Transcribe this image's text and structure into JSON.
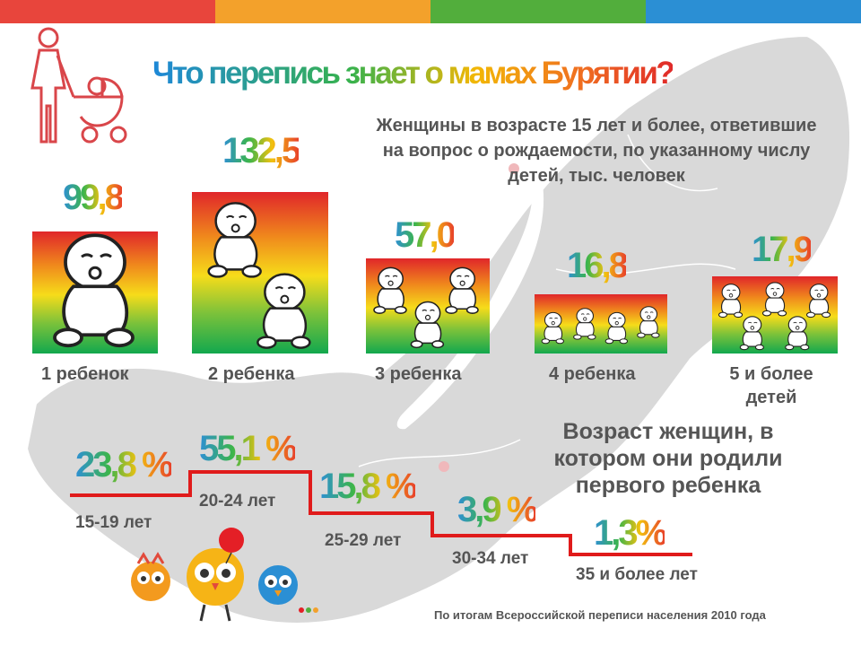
{
  "colors": {
    "bar_red": "#e8453c",
    "bar_orange": "#f3a12b",
    "bar_green": "#52ae3c",
    "bar_blue": "#2b8fd4",
    "step_line": "#e01b1b",
    "text_gray": "#555555"
  },
  "title": "Что перепись знает о мамах Бурятии?",
  "subtitle": "Женщины в возрасте 15 лет и более, ответившие на вопрос о рождаемости, по указанному числу детей, тыс. человек",
  "children": [
    {
      "value": "99,8",
      "label": "1 ребенок",
      "babies": 1
    },
    {
      "value": "132,5",
      "label": "2 ребенка",
      "babies": 2
    },
    {
      "value": "57,0",
      "label": "3 ребенка",
      "babies": 3
    },
    {
      "value": "16,8",
      "label": "4 ребенка",
      "babies": 4
    },
    {
      "value": "17,9",
      "label": "5 и более детей",
      "babies": 5
    }
  ],
  "age_heading": "Возраст женщин, в котором они родили первого ребенка",
  "age_groups": [
    {
      "percent": "23,8 %",
      "label": "15-19 лет"
    },
    {
      "percent": "55,1 %",
      "label": "20-24 лет"
    },
    {
      "percent": "15,8 %",
      "label": "25-29 лет"
    },
    {
      "percent": "3,9 %",
      "label": "30-34 лет"
    },
    {
      "percent": "1,3%",
      "label": "35 и более лет"
    }
  ],
  "icons": [
    "mother-with-stroller-icon",
    "baby-icon",
    "census-mascots"
  ],
  "footer": "По итогам Всероссийской переписи населения 2010 года"
}
